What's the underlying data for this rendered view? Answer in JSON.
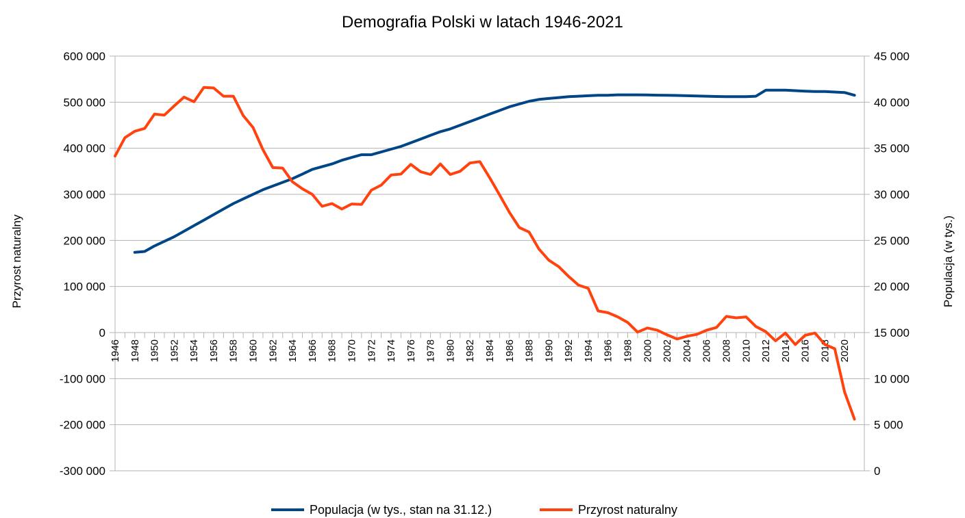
{
  "chart_data": {
    "type": "line",
    "title": "Demografia Polski w latach 1946-2021",
    "ylabel_left": "Przyrost naturalny",
    "ylabel_right": "Populacja (w tys.)",
    "ylim_left": [
      -300000,
      600000
    ],
    "ylim_right": [
      0,
      45000
    ],
    "yticks_left": [
      600000,
      500000,
      400000,
      300000,
      200000,
      100000,
      0,
      -100000,
      -200000,
      -300000
    ],
    "yticks_left_labels": [
      "600 000",
      "500 000",
      "400 000",
      "300 000",
      "200 000",
      "100 000",
      "0",
      "-100 000",
      "-200 000",
      "-300 000"
    ],
    "yticks_right": [
      45000,
      40000,
      35000,
      30000,
      25000,
      20000,
      15000,
      10000,
      5000,
      0
    ],
    "yticks_right_labels": [
      "45 000",
      "40 000",
      "35 000",
      "30 000",
      "25 000",
      "20 000",
      "15 000",
      "10 000",
      "5 000",
      "0"
    ],
    "xlim": [
      1946,
      2021
    ],
    "x_tick_labels": [
      "1946",
      "1948",
      "1950",
      "1952",
      "1954",
      "1956",
      "1958",
      "1960",
      "1962",
      "1964",
      "1966",
      "1968",
      "1970",
      "1972",
      "1974",
      "1976",
      "1978",
      "1980",
      "1982",
      "1984",
      "1986",
      "1988",
      "1990",
      "1992",
      "1994",
      "1996",
      "1998",
      "2000",
      "2002",
      "2004",
      "2006",
      "2008",
      "2010",
      "2012",
      "2014",
      "2016",
      "2018",
      "2020"
    ],
    "grid": "horizontal",
    "legend_position": "bottom",
    "series": [
      {
        "name": "Populacja (w tys., stan na 31.12.)",
        "axis": "right",
        "color": "#004586",
        "x": [
          1948,
          1949,
          1950,
          1951,
          1952,
          1953,
          1954,
          1955,
          1956,
          1957,
          1958,
          1959,
          1960,
          1961,
          1962,
          1963,
          1964,
          1965,
          1966,
          1967,
          1968,
          1969,
          1970,
          1971,
          1972,
          1973,
          1974,
          1975,
          1976,
          1977,
          1978,
          1979,
          1980,
          1981,
          1982,
          1983,
          1984,
          1985,
          1986,
          1987,
          1988,
          1989,
          1990,
          1991,
          1992,
          1993,
          1994,
          1995,
          1996,
          1997,
          1998,
          1999,
          2000,
          2001,
          2002,
          2003,
          2004,
          2005,
          2006,
          2007,
          2008,
          2009,
          2010,
          2011,
          2012,
          2013,
          2014,
          2015,
          2016,
          2017,
          2018,
          2019,
          2020,
          2021
        ],
        "values": [
          23700,
          23800,
          24400,
          24900,
          25400,
          26000,
          26600,
          27200,
          27800,
          28400,
          29000,
          29500,
          30000,
          30500,
          30900,
          31300,
          31700,
          32200,
          32700,
          33000,
          33300,
          33700,
          34000,
          34300,
          34300,
          34600,
          34900,
          35200,
          35600,
          36000,
          36400,
          36800,
          37100,
          37500,
          37900,
          38300,
          38700,
          39100,
          39500,
          39800,
          40100,
          40300,
          40400,
          40500,
          40600,
          40650,
          40700,
          40750,
          40750,
          40800,
          40800,
          40800,
          40780,
          40760,
          40750,
          40730,
          40700,
          40680,
          40650,
          40620,
          40600,
          40600,
          40600,
          40650,
          41300,
          41300,
          41300,
          41250,
          41200,
          41150,
          41150,
          41100,
          41050,
          40750
        ]
      },
      {
        "name": "Przyrost naturalny",
        "axis": "left",
        "color": "#ff420e",
        "x": [
          1946,
          1947,
          1948,
          1949,
          1950,
          1951,
          1952,
          1953,
          1954,
          1955,
          1956,
          1957,
          1958,
          1959,
          1960,
          1961,
          1962,
          1963,
          1964,
          1965,
          1966,
          1967,
          1968,
          1969,
          1970,
          1971,
          1972,
          1973,
          1974,
          1975,
          1976,
          1977,
          1978,
          1979,
          1980,
          1981,
          1982,
          1983,
          1984,
          1985,
          1986,
          1987,
          1988,
          1989,
          1990,
          1991,
          1992,
          1993,
          1994,
          1995,
          1996,
          1997,
          1998,
          1999,
          2000,
          2001,
          2002,
          2003,
          2004,
          2005,
          2006,
          2007,
          2008,
          2009,
          2010,
          2011,
          2012,
          2013,
          2014,
          2015,
          2016,
          2017,
          2018,
          2019,
          2020,
          2021
        ],
        "values": [
          383000,
          423000,
          437000,
          443000,
          474000,
          472000,
          492000,
          511000,
          501000,
          532000,
          531000,
          513000,
          513000,
          471000,
          445000,
          397000,
          358000,
          357000,
          327000,
          312000,
          300000,
          274000,
          280000,
          268000,
          279000,
          278000,
          309000,
          320000,
          342000,
          344000,
          365000,
          349000,
          343000,
          366000,
          343000,
          350000,
          368000,
          371000,
          336000,
          299000,
          261000,
          228000,
          218000,
          181000,
          157000,
          143000,
          122000,
          103000,
          96000,
          47000,
          43000,
          34000,
          22000,
          1000,
          10000,
          5000,
          -5000,
          -14000,
          -8000,
          -4000,
          5000,
          11000,
          35000,
          32000,
          34000,
          13000,
          2000,
          -18000,
          -1000,
          -26000,
          -6000,
          -1000,
          -26000,
          -35000,
          -129000,
          -188000
        ]
      }
    ]
  }
}
